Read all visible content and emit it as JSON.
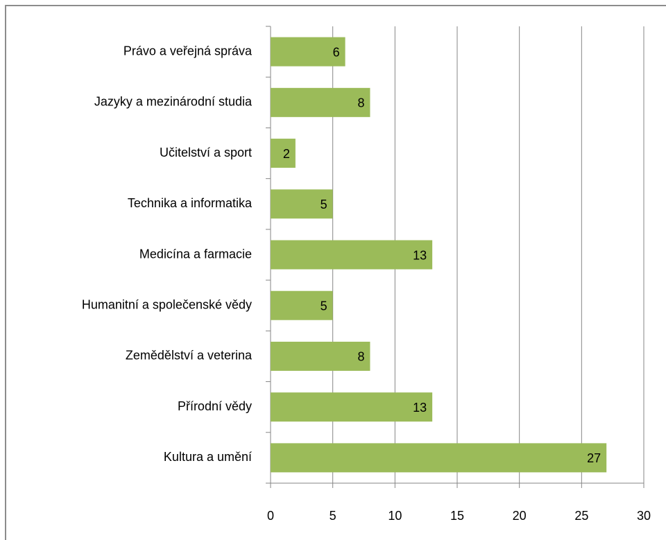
{
  "chart_data": {
    "type": "bar",
    "orientation": "horizontal",
    "categories": [
      "Právo a veřejná správa",
      "Jazyky a mezinárodní studia",
      "Učitelství a sport",
      "Technika a informatika",
      "Medicína a farmacie",
      "Humanitní a společenské vědy",
      "Zemědělství a veterina",
      "Přírodní vědy",
      "Kultura a umění"
    ],
    "values": [
      6,
      8,
      2,
      5,
      13,
      5,
      8,
      13,
      27
    ],
    "color": "#9bbb59",
    "xlim": [
      0,
      30
    ],
    "xticks": [
      0,
      5,
      10,
      15,
      20,
      25,
      30
    ],
    "grid": true
  }
}
